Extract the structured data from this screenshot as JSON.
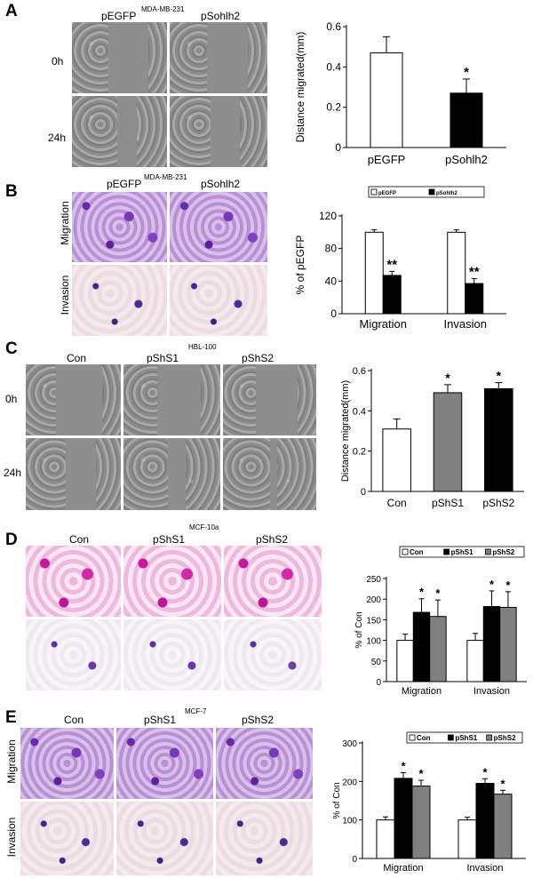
{
  "panels": [
    {
      "label": "A",
      "cell_line": "MDA-MB-231",
      "columns": [
        "pEGFP",
        "pSohlh2"
      ],
      "rows": [
        "0h",
        "24h"
      ],
      "row_label_style": "horizontal",
      "image_style": "scratch"
    },
    {
      "label": "B",
      "cell_line": "MDA-MB-231",
      "columns": [
        "pEGFP",
        "pSohlh2"
      ],
      "rows": [
        "Migration",
        "Invasion"
      ],
      "row_label_style": "vertical",
      "image_style": "transwell"
    },
    {
      "label": "C",
      "cell_line": "HBL-100",
      "columns": [
        "Con",
        "pShS1",
        "pShS2"
      ],
      "rows": [
        "0h",
        "24h"
      ],
      "row_label_style": "horizontal",
      "image_style": "scratch"
    },
    {
      "label": "D",
      "cell_line": "MCF-10a",
      "columns": [
        "Con",
        "pShS1",
        "pShS2"
      ],
      "rows": [
        "",
        ""
      ],
      "row_label_style": "none",
      "image_style": "transwell-magenta"
    },
    {
      "label": "E",
      "cell_line": "MCF-7",
      "columns": [
        "Con",
        "pShS1",
        "pShS2"
      ],
      "rows": [
        "Migration",
        "Invasion"
      ],
      "row_label_style": "vertical",
      "image_style": "transwell"
    }
  ],
  "chart_data": [
    {
      "panel": "A",
      "type": "bar",
      "categories": [
        "pEGFP",
        "pSohlh2"
      ],
      "values": [
        0.47,
        0.27
      ],
      "errors": [
        0.08,
        0.07
      ],
      "colors": [
        "#ffffff",
        "#000000"
      ],
      "significance": [
        "",
        "*"
      ],
      "ylabel": "Distance migrated(mm)",
      "ylim": [
        0,
        0.6
      ],
      "yticks": [
        "0",
        "0.2",
        "0.4",
        "0.6"
      ],
      "ytick_values": [
        0,
        0.2,
        0.4,
        0.6
      ]
    },
    {
      "panel": "B",
      "type": "bar",
      "categories": [
        "Migration",
        "Invasion"
      ],
      "series": [
        {
          "name": "pEGFP",
          "values": [
            100,
            100
          ],
          "errors": [
            3,
            3
          ],
          "color": "#ffffff",
          "significance": [
            "",
            ""
          ]
        },
        {
          "name": "pSohlh2",
          "values": [
            47,
            37
          ],
          "errors": [
            5,
            6
          ],
          "color": "#000000",
          "significance": [
            "**",
            "**"
          ]
        }
      ],
      "ylabel": "% of pEGFP",
      "ylim": [
        0,
        120
      ],
      "yticks": [
        "0",
        "40",
        "80",
        "120"
      ],
      "ytick_values": [
        0,
        40,
        80,
        120
      ],
      "legend": "top"
    },
    {
      "panel": "C",
      "type": "bar",
      "categories": [
        "Con",
        "pShS1",
        "pShS2"
      ],
      "values": [
        0.31,
        0.49,
        0.51
      ],
      "errors": [
        0.05,
        0.04,
        0.03
      ],
      "colors": [
        "#ffffff",
        "#808080",
        "#000000"
      ],
      "significance": [
        "",
        "*",
        "*"
      ],
      "ylabel": "Distance migrated(mm)",
      "ylim": [
        0,
        0.6
      ],
      "yticks": [
        "0",
        "0.2",
        "0.4",
        "0.6"
      ],
      "ytick_values": [
        0,
        0.2,
        0.4,
        0.6
      ]
    },
    {
      "panel": "D",
      "type": "bar",
      "categories": [
        "Migration",
        "Invasion"
      ],
      "series": [
        {
          "name": "Con",
          "values": [
            100,
            100
          ],
          "errors": [
            15,
            17
          ],
          "color": "#ffffff",
          "significance": [
            "",
            ""
          ]
        },
        {
          "name": "pShS1",
          "values": [
            168,
            182
          ],
          "errors": [
            33,
            38
          ],
          "color": "#000000",
          "significance": [
            "*",
            "*"
          ]
        },
        {
          "name": "pShS2",
          "values": [
            158,
            180
          ],
          "errors": [
            40,
            38
          ],
          "color": "#808080",
          "significance": [
            "*",
            "*"
          ]
        }
      ],
      "ylabel": "% of Con",
      "ylim": [
        0,
        250
      ],
      "yticks": [
        "0",
        "50",
        "100",
        "150",
        "200",
        "250"
      ],
      "ytick_values": [
        0,
        50,
        100,
        150,
        200,
        250
      ],
      "legend": "top"
    },
    {
      "panel": "E",
      "type": "bar",
      "categories": [
        "Migration",
        "Invasion"
      ],
      "series": [
        {
          "name": "Con",
          "values": [
            100,
            100
          ],
          "errors": [
            8,
            7
          ],
          "color": "#ffffff",
          "significance": [
            "",
            ""
          ]
        },
        {
          "name": "pShS1",
          "values": [
            208,
            195
          ],
          "errors": [
            15,
            12
          ],
          "color": "#000000",
          "significance": [
            "*",
            "*"
          ]
        },
        {
          "name": "pShS2",
          "values": [
            188,
            167
          ],
          "errors": [
            15,
            10
          ],
          "color": "#808080",
          "significance": [
            "*",
            "*"
          ]
        }
      ],
      "ylabel": "% of Con",
      "ylim": [
        0,
        300
      ],
      "yticks": [
        "0",
        "100",
        "200",
        "300"
      ],
      "ytick_values": [
        0,
        100,
        200,
        300
      ],
      "legend": "top"
    }
  ]
}
